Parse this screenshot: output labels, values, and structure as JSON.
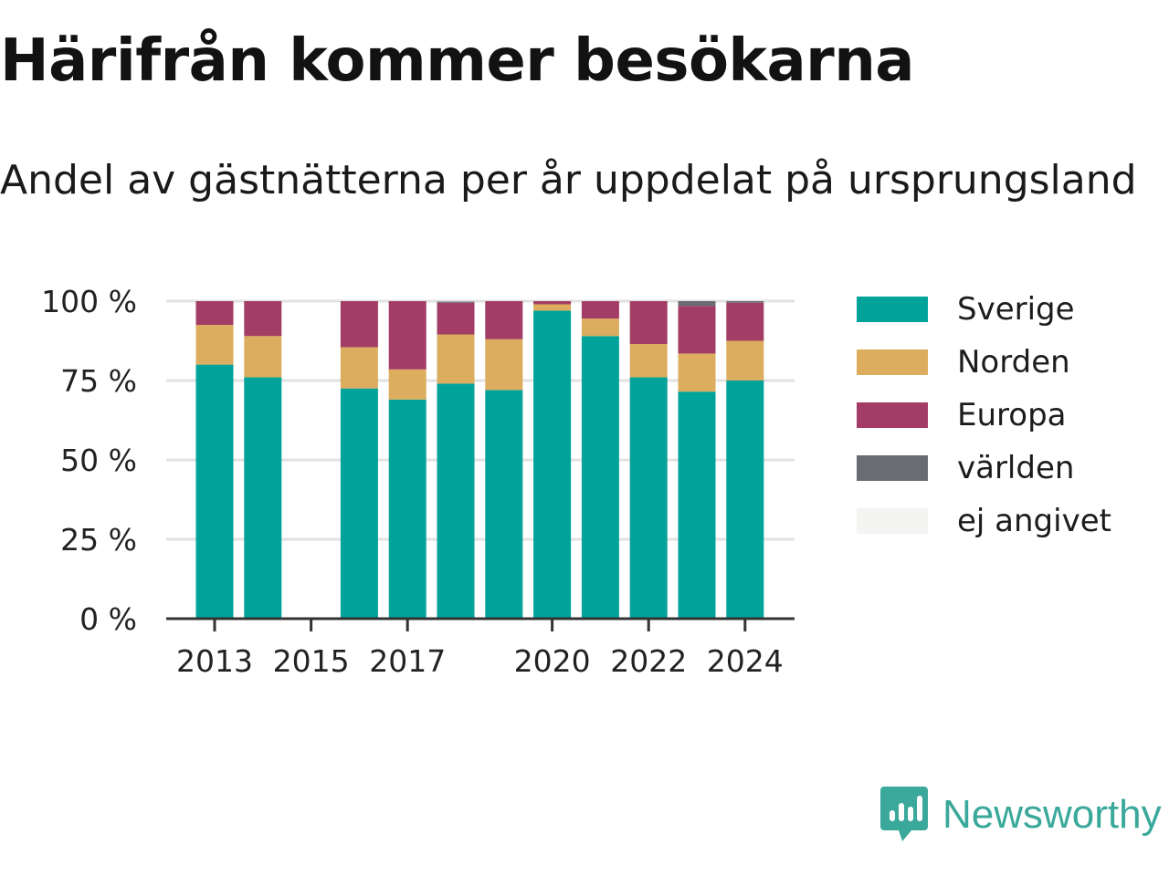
{
  "title": "Härifrån kommer besökarna",
  "subtitle": "Andel av gästnätterna per år uppdelat på ursprungsland",
  "logo_text": "Newsworthy",
  "chart_data": {
    "type": "bar",
    "stacked": true,
    "x": [
      2013,
      2014,
      2015,
      2016,
      2017,
      2018,
      2019,
      2020,
      2021,
      2022,
      2023,
      2024
    ],
    "x_tick_labels": [
      "2013",
      "2015",
      "2017",
      "2020",
      "2022",
      "2024"
    ],
    "y_tick_labels": [
      "0 %",
      "25 %",
      "50 %",
      "75 %",
      "100 %"
    ],
    "ylim": [
      0,
      100
    ],
    "grid": true,
    "legend_position": "right",
    "series": [
      {
        "name": "Sverige",
        "color": "#00a39a",
        "values": [
          80,
          76,
          null,
          72.5,
          69,
          74,
          72,
          97,
          89,
          76,
          71.5,
          75
        ]
      },
      {
        "name": "Norden",
        "color": "#dcad5e",
        "values": [
          12.5,
          13,
          null,
          13,
          9.5,
          15.5,
          16,
          2,
          5.5,
          10.5,
          12,
          12.5
        ]
      },
      {
        "name": "Europa",
        "color": "#a33d65",
        "values": [
          7.5,
          11,
          null,
          14.5,
          21.5,
          10,
          12,
          1,
          5.5,
          13.5,
          15,
          12
        ]
      },
      {
        "name": "världen",
        "color": "#6b6b74",
        "values": [
          0,
          0,
          null,
          0,
          0,
          0.4,
          0,
          0,
          0,
          0,
          1.5,
          0.5
        ]
      },
      {
        "name": "ej angivet",
        "color": "#f4f4f3",
        "values": [
          0,
          0,
          null,
          0,
          0,
          0.1,
          0,
          0,
          0,
          0,
          0,
          0
        ]
      }
    ]
  }
}
